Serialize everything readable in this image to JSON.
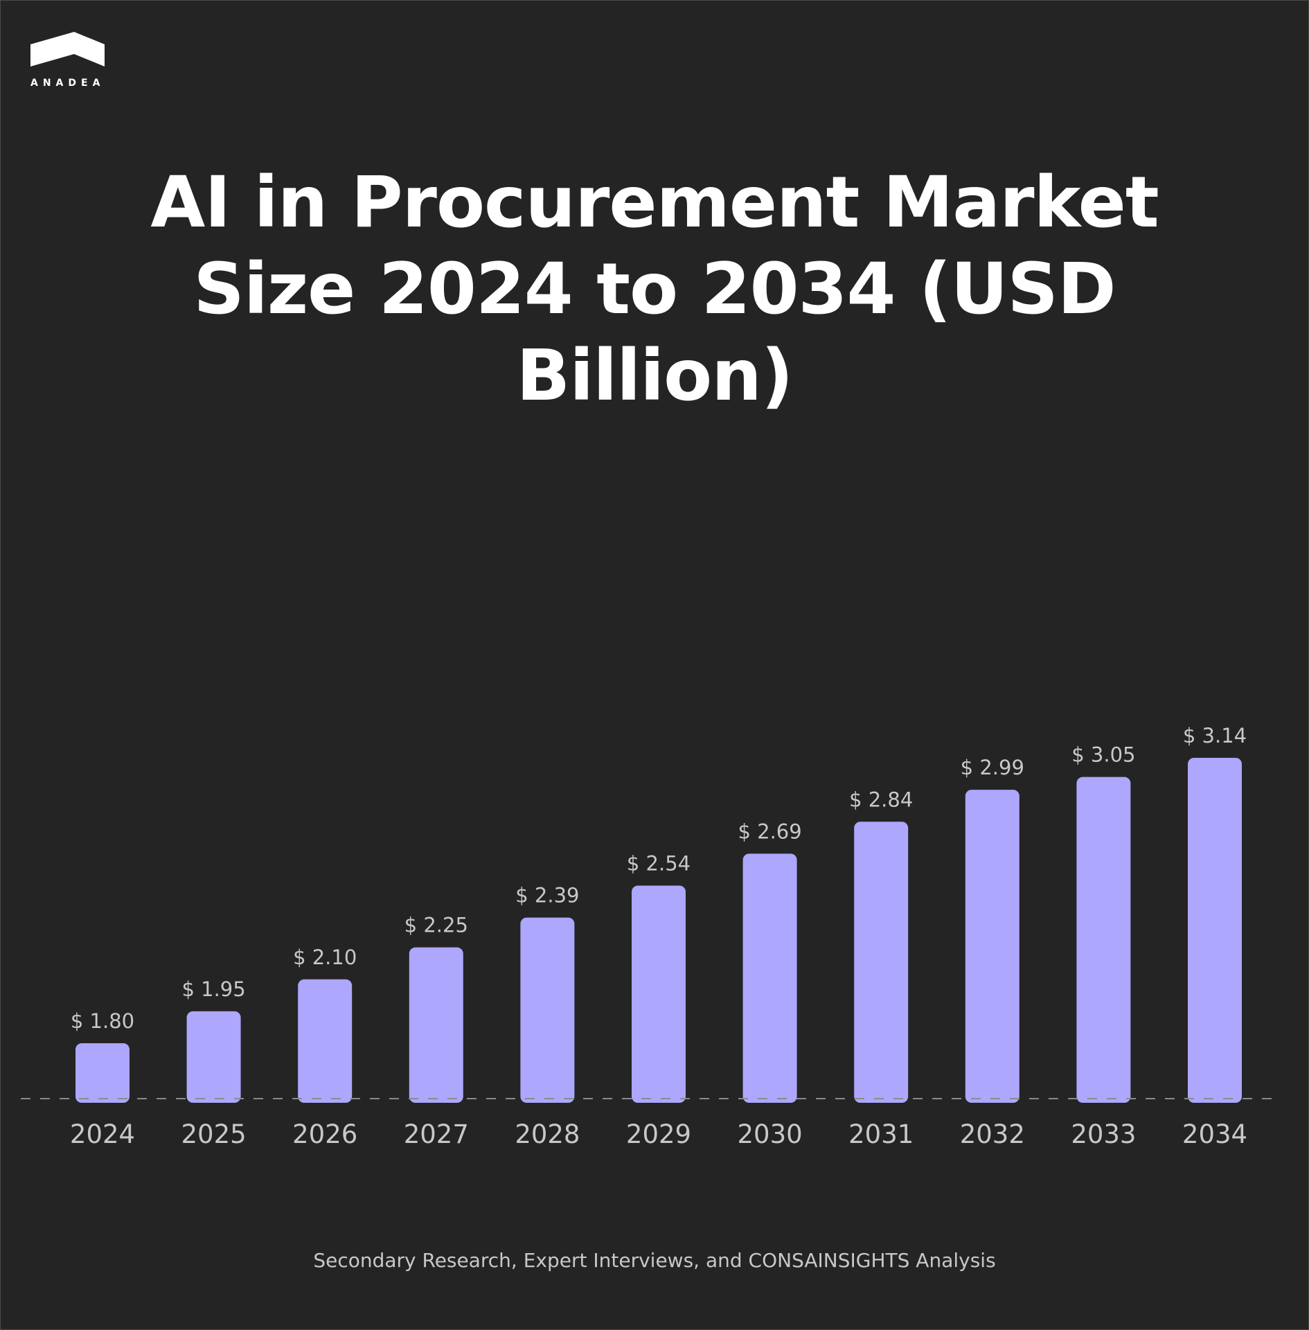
{
  "brand": {
    "name": "ANADEA"
  },
  "title_lines": [
    "AI in Procurement Market",
    "Size 2024 to 2034 (USD",
    "Billion)"
  ],
  "source": "Secondary Research, Expert Interviews, and CONSAINSIGHTS Analysis",
  "colors": {
    "background": "#242424",
    "bar": "#ada7fd",
    "label": "#c8c8c8",
    "baseline": "#8a8a8a"
  },
  "chart_data": {
    "type": "bar",
    "title": "AI in Procurement Market Size 2024 to 2034 (USD Billion)",
    "categories": [
      "2024",
      "2025",
      "2026",
      "2027",
      "2028",
      "2029",
      "2030",
      "2031",
      "2032",
      "2033",
      "2034"
    ],
    "values": [
      1.8,
      1.95,
      2.1,
      2.25,
      2.39,
      2.54,
      2.69,
      2.84,
      2.99,
      3.05,
      3.14
    ],
    "data_labels": [
      "$ 1.80",
      "$ 1.95",
      "$ 2.10",
      "$ 2.25",
      "$ 2.39",
      "$ 2.54",
      "$ 2.69",
      "$ 2.84",
      "$ 2.99",
      "$ 3.05",
      "$ 3.14"
    ],
    "xlabel": "",
    "ylabel": "",
    "grid": false,
    "legend": "none"
  }
}
